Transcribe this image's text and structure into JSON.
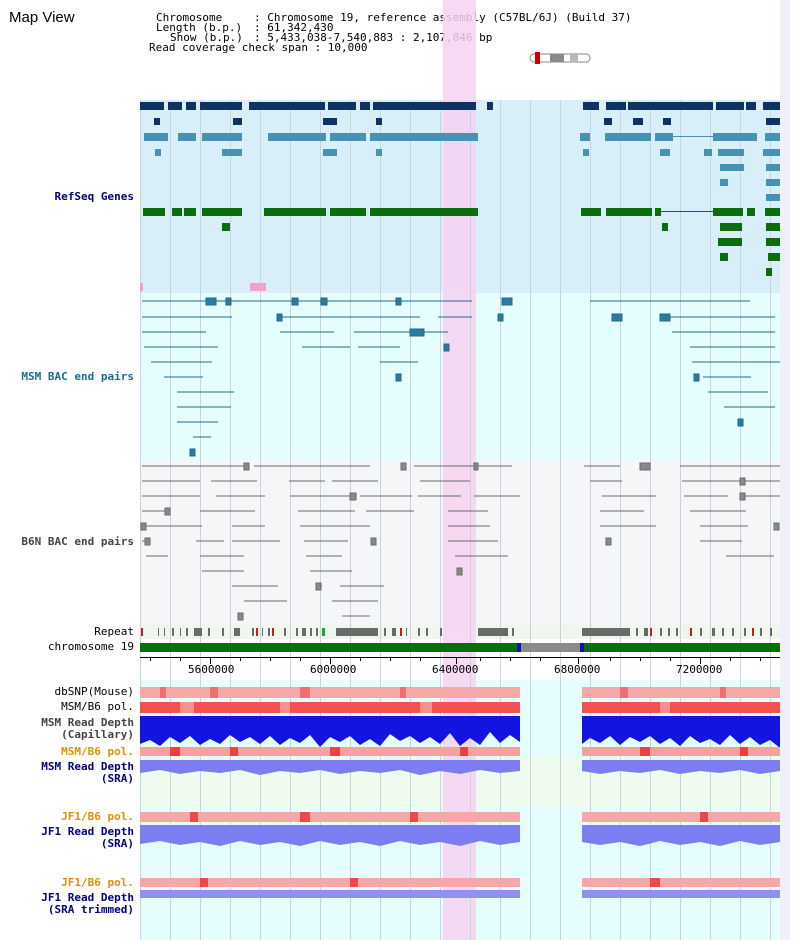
{
  "title": "Map View",
  "header": {
    "chromosome_key": "Chromosome",
    "chromosome_val": ": Chromosome 19, reference assembly (C57BL/6J) (Build 37)",
    "length_key": "Length (b.p.)",
    "length_val": ": 61,342,430",
    "show_key": "Show (b.p.)",
    "show_val": ": 5,433,038-7,540,883 : 2,107,846 bp",
    "read_cov": "Read coverage check span : 10,000"
  },
  "tracks": {
    "refseq": "RefSeq Genes",
    "msm_bac": "MSM BAC end pairs",
    "b6n_bac": "B6N BAC end pairs",
    "repeat": "Repeat",
    "chromosome": "chromosome 19",
    "dbsnp": "dbSNP(Mouse)",
    "msm_b6_pol_1": "MSM/B6 pol.",
    "msm_read_depth_cap_1": "MSM Read Depth",
    "msm_read_depth_cap_2": "(Capillary)",
    "msm_b6_pol_2": "MSM/B6 pol.",
    "msm_read_depth_sra_1": "MSM Read Depth",
    "msm_read_depth_sra_2": "(SRA)",
    "jf1_b6_pol_1": "JF1/B6 pol.",
    "jf1_read_depth_sra_1": "JF1 Read Depth",
    "jf1_read_depth_sra_2": "(SRA)",
    "jf1_b6_pol_2": "JF1/B6 pol.",
    "jf1_read_depth_trim_1": "JF1 Read Depth",
    "jf1_read_depth_trim_2": "(SRA trimmed)"
  },
  "axis": {
    "ticks": [
      "5600000",
      "6000000",
      "6400000",
      "6800000",
      "7200000"
    ]
  },
  "colors": {
    "refseq_bg": "#d8effa",
    "msm_bg": "#e6fdfd",
    "b6n_bg": "#f4f6f8",
    "highlight": "#f6d2f2",
    "gene_navy": "#0d3264",
    "gene_teal": "#4691b4",
    "gene_green": "#0b6d0b",
    "chrom_green": "#087008",
    "depth_blue": "#1414e0",
    "depth_light": "#7d7df2",
    "pol_red": "#f04848"
  }
}
